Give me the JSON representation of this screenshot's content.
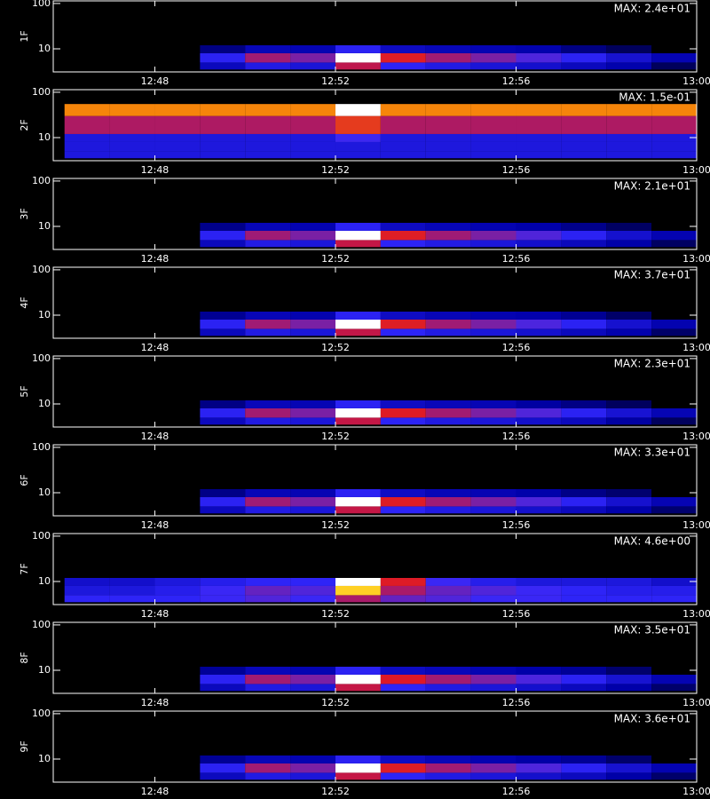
{
  "chart_data": [
    {
      "type": "heatmap",
      "ylabel": "1F",
      "annotation": "MAX: 2.4e+01",
      "zmax": 24,
      "log_y": true,
      "xlim": [
        0.75,
        15
      ],
      "xticks": [
        {
          "value": 3,
          "label": "12:48"
        },
        {
          "value": 7,
          "label": "12:52"
        },
        {
          "value": 11,
          "label": "12:56"
        },
        {
          "value": 15,
          "label": "13:00"
        }
      ],
      "ylim": [
        3.1,
        114
      ],
      "yticks": [
        10,
        100
      ],
      "xbins": [
        1,
        2,
        3,
        4,
        5,
        6,
        7,
        8,
        9,
        10,
        11,
        12,
        13,
        14,
        15
      ],
      "ybins": [
        3.5,
        5,
        8,
        12,
        30,
        55
      ],
      "z": [
        [
          0,
          0,
          0,
          0.7,
          1.8,
          1.4,
          7,
          2.5,
          1.8,
          1.4,
          1.1,
          0.7,
          0.4,
          0.1
        ],
        [
          0,
          0,
          0,
          2.4,
          6,
          4.8,
          24,
          8.4,
          6,
          4.8,
          3.6,
          2.4,
          1.2,
          0.5
        ],
        [
          0,
          0,
          0,
          0.2,
          0.6,
          0.5,
          2.4,
          0.8,
          0.6,
          0.5,
          0.4,
          0.2,
          0.1,
          0
        ],
        [
          0,
          0,
          0,
          0,
          0,
          0,
          0,
          0,
          0,
          0,
          0,
          0,
          0,
          0
        ],
        [
          0,
          0,
          0,
          0,
          0,
          0,
          0,
          0,
          0,
          0,
          0,
          0,
          0,
          0
        ]
      ]
    },
    {
      "type": "heatmap",
      "ylabel": "2F",
      "annotation": "MAX: 1.5e-01",
      "zmax": 0.15,
      "log_y": true,
      "xlim": [
        0.75,
        15
      ],
      "xticks": [
        {
          "value": 3,
          "label": "12:48"
        },
        {
          "value": 7,
          "label": "12:52"
        },
        {
          "value": 11,
          "label": "12:56"
        },
        {
          "value": 15,
          "label": "13:00"
        }
      ],
      "ylim": [
        3.1,
        114
      ],
      "yticks": [
        10,
        100
      ],
      "xbins": [
        1,
        2,
        3,
        4,
        5,
        6,
        7,
        8,
        9,
        10,
        11,
        12,
        13,
        14,
        15
      ],
      "ybins": [
        3.5,
        5,
        8,
        12,
        30,
        55
      ],
      "z": [
        [
          0.01,
          0.01,
          0.01,
          0.01,
          0.01,
          0.01,
          0.01,
          0.01,
          0.01,
          0.01,
          0.01,
          0.01,
          0.01,
          0.01
        ],
        [
          0.01,
          0.01,
          0.01,
          0.01,
          0.01,
          0.01,
          0.01,
          0.01,
          0.01,
          0.01,
          0.01,
          0.01,
          0.01,
          0.01
        ],
        [
          0.01,
          0.01,
          0.01,
          0.01,
          0.01,
          0.01,
          0.02,
          0.01,
          0.01,
          0.01,
          0.01,
          0.01,
          0.01,
          0.01
        ],
        [
          0.04,
          0.04,
          0.04,
          0.04,
          0.04,
          0.04,
          0.06,
          0.04,
          0.04,
          0.04,
          0.04,
          0.04,
          0.04,
          0.04
        ],
        [
          0.08,
          0.08,
          0.08,
          0.08,
          0.08,
          0.08,
          0.15,
          0.08,
          0.08,
          0.08,
          0.08,
          0.08,
          0.08,
          0.08
        ]
      ]
    },
    {
      "type": "heatmap",
      "ylabel": "3F",
      "annotation": "MAX: 2.1e+01",
      "zmax": 21,
      "log_y": true,
      "xlim": [
        0.75,
        15
      ],
      "xticks": [
        {
          "value": 3,
          "label": "12:48"
        },
        {
          "value": 7,
          "label": "12:52"
        },
        {
          "value": 11,
          "label": "12:56"
        },
        {
          "value": 15,
          "label": "13:00"
        }
      ],
      "ylim": [
        3.1,
        114
      ],
      "yticks": [
        10,
        100
      ],
      "xbins": [
        1,
        2,
        3,
        4,
        5,
        6,
        7,
        8,
        9,
        10,
        11,
        12,
        13,
        14,
        15
      ],
      "ybins": [
        3.5,
        5,
        8,
        12,
        30,
        55
      ],
      "z": [
        [
          0,
          0,
          0,
          0.6,
          1.6,
          1.3,
          6.3,
          2.2,
          1.6,
          1.3,
          0.9,
          0.6,
          0.3,
          0.1
        ],
        [
          0,
          0,
          0,
          2.1,
          5.2,
          4.2,
          21,
          7.4,
          5.2,
          4.2,
          3.2,
          2.1,
          1,
          0.4
        ],
        [
          0,
          0,
          0,
          0.2,
          0.5,
          0.4,
          2.1,
          0.7,
          0.5,
          0.4,
          0.3,
          0.2,
          0.1,
          0
        ],
        [
          0,
          0,
          0,
          0,
          0,
          0,
          0,
          0,
          0,
          0,
          0,
          0,
          0,
          0
        ],
        [
          0,
          0,
          0,
          0,
          0,
          0,
          0,
          0,
          0,
          0,
          0,
          0,
          0,
          0
        ]
      ]
    },
    {
      "type": "heatmap",
      "ylabel": "4F",
      "annotation": "MAX: 3.7e+01",
      "zmax": 37,
      "log_y": true,
      "xlim": [
        0.75,
        15
      ],
      "xticks": [
        {
          "value": 3,
          "label": "12:48"
        },
        {
          "value": 7,
          "label": "12:52"
        },
        {
          "value": 11,
          "label": "12:56"
        },
        {
          "value": 15,
          "label": "13:00"
        }
      ],
      "ylim": [
        3.1,
        114
      ],
      "yticks": [
        10,
        100
      ],
      "xbins": [
        1,
        2,
        3,
        4,
        5,
        6,
        7,
        8,
        9,
        10,
        11,
        12,
        13,
        14,
        15
      ],
      "ybins": [
        3.5,
        5,
        8,
        12,
        30,
        55
      ],
      "z": [
        [
          0,
          0,
          0,
          1.1,
          2.8,
          2.2,
          11,
          3.9,
          2.8,
          2.2,
          1.7,
          1.1,
          0.6,
          0.2
        ],
        [
          0,
          0,
          0,
          3.7,
          9.2,
          7.4,
          37,
          13,
          9.2,
          7.4,
          5.5,
          3.7,
          1.8,
          0.7
        ],
        [
          0,
          0,
          0,
          0.4,
          0.9,
          0.7,
          3.7,
          1.3,
          0.9,
          0.7,
          0.6,
          0.4,
          0.2,
          0
        ],
        [
          0,
          0,
          0,
          0,
          0,
          0,
          0,
          0,
          0,
          0,
          0,
          0,
          0,
          0
        ],
        [
          0,
          0,
          0,
          0,
          0,
          0,
          0,
          0,
          0,
          0,
          0,
          0,
          0,
          0
        ]
      ]
    },
    {
      "type": "heatmap",
      "ylabel": "5F",
      "annotation": "MAX: 2.3e+01",
      "zmax": 23,
      "log_y": true,
      "xlim": [
        0.75,
        15
      ],
      "xticks": [
        {
          "value": 3,
          "label": "12:48"
        },
        {
          "value": 7,
          "label": "12:52"
        },
        {
          "value": 11,
          "label": "12:56"
        },
        {
          "value": 15,
          "label": "13:00"
        }
      ],
      "ylim": [
        3.1,
        114
      ],
      "yticks": [
        10,
        100
      ],
      "xbins": [
        1,
        2,
        3,
        4,
        5,
        6,
        7,
        8,
        9,
        10,
        11,
        12,
        13,
        14,
        15
      ],
      "ybins": [
        3.5,
        5,
        8,
        12,
        30,
        55
      ],
      "z": [
        [
          0,
          0,
          0,
          0.7,
          1.7,
          1.4,
          6.9,
          2.4,
          1.7,
          1.4,
          1,
          0.7,
          0.3,
          0.1
        ],
        [
          0,
          0,
          0,
          2.3,
          5.8,
          4.6,
          23,
          8,
          5.8,
          4.6,
          3.5,
          2.3,
          1.2,
          0.5
        ],
        [
          0,
          0,
          0,
          0.2,
          0.6,
          0.5,
          2.3,
          0.8,
          0.6,
          0.5,
          0.3,
          0.2,
          0.1,
          0
        ],
        [
          0,
          0,
          0,
          0,
          0,
          0,
          0,
          0,
          0,
          0,
          0,
          0,
          0,
          0
        ],
        [
          0,
          0,
          0,
          0,
          0,
          0,
          0,
          0,
          0,
          0,
          0,
          0,
          0,
          0
        ]
      ]
    },
    {
      "type": "heatmap",
      "ylabel": "6F",
      "annotation": "MAX: 3.3e+01",
      "zmax": 33,
      "log_y": true,
      "xlim": [
        0.75,
        15
      ],
      "xticks": [
        {
          "value": 3,
          "label": "12:48"
        },
        {
          "value": 7,
          "label": "12:52"
        },
        {
          "value": 11,
          "label": "12:56"
        },
        {
          "value": 15,
          "label": "13:00"
        }
      ],
      "ylim": [
        3.1,
        114
      ],
      "yticks": [
        10,
        100
      ],
      "xbins": [
        1,
        2,
        3,
        4,
        5,
        6,
        7,
        8,
        9,
        10,
        11,
        12,
        13,
        14,
        15
      ],
      "ybins": [
        3.5,
        5,
        8,
        12,
        30,
        55
      ],
      "z": [
        [
          0,
          0,
          0,
          1,
          2.5,
          2,
          9.9,
          3.5,
          2.5,
          2,
          1.5,
          1,
          0.5,
          0.2
        ],
        [
          0,
          0,
          0,
          3.3,
          8.2,
          6.6,
          33,
          11.5,
          8.2,
          6.6,
          5,
          3.3,
          1.6,
          0.7
        ],
        [
          0,
          0,
          0,
          0.3,
          0.8,
          0.7,
          3.3,
          1.2,
          0.8,
          0.7,
          0.5,
          0.3,
          0.2,
          0
        ],
        [
          0,
          0,
          0,
          0,
          0,
          0,
          0,
          0,
          0,
          0,
          0,
          0,
          0,
          0
        ],
        [
          0,
          0,
          0,
          0,
          0,
          0,
          0,
          0,
          0,
          0,
          0,
          0,
          0,
          0
        ]
      ]
    },
    {
      "type": "heatmap",
      "ylabel": "7F",
      "annotation": "MAX: 4.6e+00",
      "zmax": 4.6,
      "log_y": true,
      "xlim": [
        0.75,
        15
      ],
      "xticks": [
        {
          "value": 3,
          "label": "12:48"
        },
        {
          "value": 7,
          "label": "12:52"
        },
        {
          "value": 11,
          "label": "12:56"
        },
        {
          "value": 15,
          "label": "13:00"
        }
      ],
      "ylim": [
        3.1,
        114
      ],
      "yticks": [
        10,
        100
      ],
      "xbins": [
        1,
        2,
        3,
        4,
        5,
        6,
        7,
        8,
        9,
        10,
        11,
        12,
        13,
        14,
        15
      ],
      "ybins": [
        3.5,
        5,
        8,
        12,
        30,
        55
      ],
      "z": [
        [
          0.5,
          0.5,
          0.5,
          0.6,
          0.7,
          0.6,
          1.2,
          0.8,
          0.7,
          0.6,
          0.6,
          0.5,
          0.5,
          0.5
        ],
        [
          0.3,
          0.3,
          0.4,
          0.6,
          0.8,
          0.7,
          3.2,
          1.2,
          0.8,
          0.7,
          0.6,
          0.5,
          0.4,
          0.4
        ],
        [
          0.2,
          0.2,
          0.3,
          0.4,
          0.5,
          0.5,
          4.6,
          1.6,
          0.6,
          0.4,
          0.3,
          0.3,
          0.3,
          0.2
        ],
        [
          0,
          0,
          0,
          0,
          0,
          0,
          0,
          0,
          0,
          0,
          0,
          0,
          0,
          0
        ],
        [
          0,
          0,
          0,
          0,
          0,
          0,
          0,
          0,
          0,
          0,
          0,
          0,
          0,
          0
        ]
      ]
    },
    {
      "type": "heatmap",
      "ylabel": "8F",
      "annotation": "MAX: 3.5e+01",
      "zmax": 35,
      "log_y": true,
      "xlim": [
        0.75,
        15
      ],
      "xticks": [
        {
          "value": 3,
          "label": "12:48"
        },
        {
          "value": 7,
          "label": "12:52"
        },
        {
          "value": 11,
          "label": "12:56"
        },
        {
          "value": 15,
          "label": "13:00"
        }
      ],
      "ylim": [
        3.1,
        114
      ],
      "yticks": [
        10,
        100
      ],
      "xbins": [
        1,
        2,
        3,
        4,
        5,
        6,
        7,
        8,
        9,
        10,
        11,
        12,
        13,
        14,
        15
      ],
      "ybins": [
        3.5,
        5,
        8,
        12,
        30,
        55
      ],
      "z": [
        [
          0,
          0,
          0,
          1,
          2.6,
          2.1,
          10.5,
          3.7,
          2.6,
          2.1,
          1.6,
          1,
          0.5,
          0.2
        ],
        [
          0,
          0,
          0,
          3.5,
          8.8,
          7,
          35,
          12,
          8.8,
          7,
          5.2,
          3.5,
          1.8,
          0.7
        ],
        [
          0,
          0,
          0,
          0.4,
          0.9,
          0.7,
          3.5,
          1.2,
          0.9,
          0.7,
          0.5,
          0.4,
          0.2,
          0
        ],
        [
          0,
          0,
          0,
          0,
          0,
          0,
          0,
          0,
          0,
          0,
          0,
          0,
          0,
          0
        ],
        [
          0,
          0,
          0,
          0,
          0,
          0,
          0,
          0,
          0,
          0,
          0,
          0,
          0,
          0
        ]
      ]
    },
    {
      "type": "heatmap",
      "ylabel": "9F",
      "annotation": "MAX: 3.6e+01",
      "zmax": 36,
      "log_y": true,
      "xlim": [
        0.75,
        15
      ],
      "xticks": [
        {
          "value": 3,
          "label": "12:48"
        },
        {
          "value": 7,
          "label": "12:52"
        },
        {
          "value": 11,
          "label": "12:56"
        },
        {
          "value": 15,
          "label": "13:00"
        }
      ],
      "ylim": [
        3.1,
        114
      ],
      "yticks": [
        10,
        100
      ],
      "xbins": [
        1,
        2,
        3,
        4,
        5,
        6,
        7,
        8,
        9,
        10,
        11,
        12,
        13,
        14,
        15
      ],
      "ybins": [
        3.5,
        5,
        8,
        12,
        30,
        55
      ],
      "z": [
        [
          0,
          0,
          0,
          1.1,
          2.7,
          2.2,
          10.8,
          3.8,
          2.7,
          2.2,
          1.6,
          1.1,
          0.5,
          0.2
        ],
        [
          0,
          0,
          0,
          3.6,
          9,
          7.2,
          36,
          12.6,
          9,
          7.2,
          5.4,
          3.6,
          1.8,
          0.7
        ],
        [
          0,
          0,
          0,
          0.4,
          0.9,
          0.7,
          3.6,
          1.3,
          0.9,
          0.7,
          0.5,
          0.4,
          0.2,
          0
        ],
        [
          0,
          0,
          0,
          0,
          0,
          0,
          0,
          0,
          0,
          0,
          0,
          0,
          0,
          0
        ],
        [
          0,
          0,
          0,
          0,
          0,
          0,
          0,
          0,
          0,
          0,
          0,
          0,
          0,
          0
        ]
      ]
    }
  ]
}
